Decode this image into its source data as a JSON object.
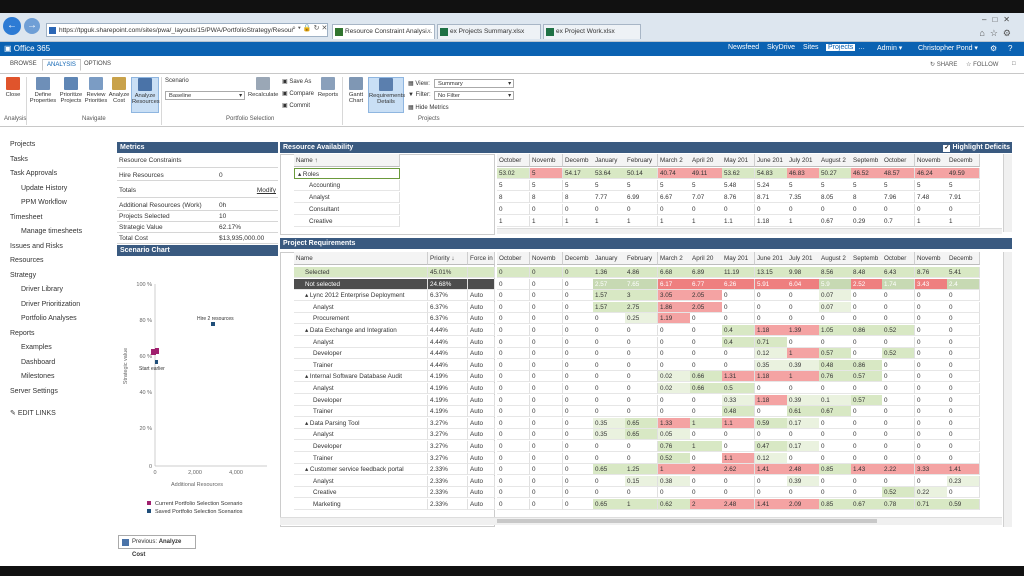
{
  "browser": {
    "url": "https://tpguk.sharepoint.com/sites/pwa/_layouts/15/PWA/PortfolioStrategy/Resour",
    "tabs": [
      {
        "label": "Resource Constraint Analysi...",
        "active": true,
        "icon": "project-icon"
      },
      {
        "label": "ex Projects Summary.xlsx",
        "active": false,
        "icon": "excel-icon"
      },
      {
        "label": "ex Project Work.xlsx",
        "active": false,
        "icon": "excel-icon"
      }
    ]
  },
  "suite": {
    "logo": "Office 365",
    "nav": [
      "Newsfeed",
      "SkyDrive",
      "Sites",
      "Projects",
      "…",
      "Admin ▾"
    ],
    "user": "Christopher Pond ▾"
  },
  "ribbon_tabs": [
    "BROWSE",
    "ANALYSIS",
    "OPTIONS"
  ],
  "share": {
    "share": "SHARE",
    "follow": "FOLLOW"
  },
  "ribbon": {
    "close": "Close",
    "define_properties": "Define Properties",
    "prioritize_projects": "Prioritize Projects",
    "review_priorities": "Review Priorities",
    "analyze_cost": "Analyze Cost",
    "analyze_resources": "Analyze Resources",
    "scenario_label": "Scenario",
    "scenario_value": "Baseline",
    "recalculate": "Recalculate",
    "save_as": "Save As",
    "compare": "Compare",
    "commit": "Commit",
    "reports": "Reports",
    "gantt_chart": "Gantt Chart",
    "requirements_details": "Requirements Details",
    "view_label": "View:",
    "view_value": "Summary",
    "filter_label": "Filter:",
    "filter_value": "No Filter",
    "hide_metrics": "Hide Metrics",
    "groups": {
      "analysis": "Analysis",
      "navigate": "Navigate",
      "portfolio_selection": "Portfolio Selection",
      "projects": "Projects"
    }
  },
  "left_nav": [
    "Projects",
    "Tasks",
    "Task Approvals",
    "Update History",
    "PPM Workflow",
    "Timesheet",
    "Manage timesheets",
    "Issues and Risks",
    "Resources",
    "Strategy",
    "Driver Library",
    "Driver Prioritization",
    "Portfolio Analyses",
    "Reports",
    "Examples",
    "Dashboard",
    "Milestones",
    "Server Settings",
    "EDIT LINKS"
  ],
  "metrics": {
    "title": "Metrics",
    "resource_constraints": "Resource Constraints",
    "hire_resources_label": "Hire Resources",
    "hire_resources_value": "0",
    "totals": "Totals",
    "modify": "Modify",
    "rows": [
      {
        "k": "Additional Resources (Work)",
        "v": "0h"
      },
      {
        "k": "Projects Selected",
        "v": "10"
      },
      {
        "k": "Strategic Value",
        "v": "62.17%"
      },
      {
        "k": "Total Cost",
        "v": "$13,935,000.00"
      }
    ]
  },
  "scenario_chart": {
    "title": "Scenario Chart",
    "y_ticks": [
      "100 %",
      "80 %",
      "60 %",
      "40 %",
      "20 %",
      "0"
    ],
    "x_ticks": [
      "0",
      "2,000",
      "4,000"
    ],
    "ylabel": "Strategic value",
    "xlabel": "Additional Resources",
    "annotation_hire": "Hire 2 resources",
    "annotation_start": "Start earlier",
    "legend": [
      {
        "label": "Current Portfolio Selection Scenario",
        "color": "#a0206e"
      },
      {
        "label": "Saved Portfolio Selection Scenarios",
        "color": "#1f4e79"
      }
    ]
  },
  "previous_button": {
    "prefix": "Previous: ",
    "bold": "Analyze Cost"
  },
  "months": [
    "October",
    "Novemb",
    "Decemb",
    "January",
    "February",
    "March 2",
    "April 20",
    "May 201",
    "June 201",
    "July 201",
    "August 2",
    "Septemb",
    "October",
    "Novemb",
    "Decemb"
  ],
  "resource_availability": {
    "title": "Resource Availability",
    "highlight": "Highlight Deficits",
    "name_header": "Name ↑",
    "rows": [
      {
        "name": "▴ Roles",
        "indent": 0,
        "values": [
          "53.02",
          "5",
          "54.17",
          "53.64",
          "50.14",
          "40.74",
          "49.11",
          "53.62",
          "54.83",
          "46.83",
          "50.27",
          "46.52",
          "48.57",
          "46.24",
          "49.59"
        ]
      },
      {
        "name": "Accounting",
        "indent": 1,
        "values": [
          "5",
          "5",
          "5",
          "5",
          "5",
          "5",
          "5",
          "5.48",
          "5.24",
          "5",
          "5",
          "5",
          "5",
          "5",
          "5"
        ]
      },
      {
        "name": "Analyst",
        "indent": 1,
        "values": [
          "8",
          "8",
          "8",
          "7.77",
          "6.99",
          "6.67",
          "7.07",
          "8.76",
          "8.71",
          "7.35",
          "8.05",
          "8",
          "7.96",
          "7.48",
          "7.91"
        ]
      },
      {
        "name": "Consultant",
        "indent": 1,
        "values": [
          "0",
          "0",
          "0",
          "0",
          "0",
          "0",
          "0",
          "0",
          "0",
          "0",
          "0",
          "0",
          "0",
          "0",
          "0"
        ]
      },
      {
        "name": "Creative",
        "indent": 1,
        "values": [
          "1",
          "1",
          "1",
          "1",
          "1",
          "1",
          "1",
          "1.1",
          "1.18",
          "1",
          "0.67",
          "0.29",
          "0.7",
          "1",
          "1"
        ]
      }
    ]
  },
  "project_requirements": {
    "title": "Project Requirements",
    "headers": {
      "name": "Name",
      "priority": "Priority ↓",
      "force": "Force in"
    },
    "rows": [
      {
        "name": "Selected",
        "priority": "45.01%",
        "force": "",
        "indent": 1,
        "style": "selected",
        "values": [
          "0",
          "0",
          "0",
          "1.36",
          "4.86",
          "6.68",
          "6.89",
          "11.19",
          "13.15",
          "9.98",
          "8.56",
          "8.48",
          "6.43",
          "8.76",
          "5.41"
        ]
      },
      {
        "name": "Not selected",
        "priority": "24.68%",
        "force": "",
        "indent": 1,
        "style": "notsel",
        "values": [
          "0",
          "0",
          "0",
          "2.57",
          "7.65",
          "6.17",
          "6.77",
          "6.26",
          "5.91",
          "6.04",
          "5.9",
          "2.52",
          "1.74",
          "3.43",
          "2.4"
        ]
      },
      {
        "name": "▴ Lync 2012 Enterprise Deployment",
        "priority": "6.37%",
        "force": "Auto",
        "indent": 1,
        "values": [
          "0",
          "0",
          "0",
          "1.57",
          "3",
          "3.05",
          "2.05",
          "0",
          "0",
          "0",
          "0.07",
          "0",
          "0",
          "0",
          "0"
        ]
      },
      {
        "name": "Analyst",
        "priority": "6.37%",
        "force": "Auto",
        "indent": 2,
        "values": [
          "0",
          "0",
          "0",
          "1.57",
          "2.75",
          "1.86",
          "2.05",
          "0",
          "0",
          "0",
          "0.07",
          "0",
          "0",
          "0",
          "0"
        ]
      },
      {
        "name": "Procurement",
        "priority": "6.37%",
        "force": "Auto",
        "indent": 2,
        "values": [
          "0",
          "0",
          "0",
          "0",
          "0.25",
          "1.19",
          "0",
          "0",
          "0",
          "0",
          "0",
          "0",
          "0",
          "0",
          "0"
        ]
      },
      {
        "name": "▴ Data Exchange and Integration",
        "priority": "4.44%",
        "force": "Auto",
        "indent": 1,
        "values": [
          "0",
          "0",
          "0",
          "0",
          "0",
          "0",
          "0",
          "0.4",
          "1.18",
          "1.39",
          "1.05",
          "0.86",
          "0.52",
          "0",
          "0"
        ]
      },
      {
        "name": "Analyst",
        "priority": "4.44%",
        "force": "Auto",
        "indent": 2,
        "values": [
          "0",
          "0",
          "0",
          "0",
          "0",
          "0",
          "0",
          "0.4",
          "0.71",
          "0",
          "0",
          "0",
          "0",
          "0",
          "0"
        ]
      },
      {
        "name": "Developer",
        "priority": "4.44%",
        "force": "Auto",
        "indent": 2,
        "values": [
          "0",
          "0",
          "0",
          "0",
          "0",
          "0",
          "0",
          "0",
          "0.12",
          "1",
          "0.57",
          "0",
          "0.52",
          "0",
          "0"
        ]
      },
      {
        "name": "Trainer",
        "priority": "4.44%",
        "force": "Auto",
        "indent": 2,
        "values": [
          "0",
          "0",
          "0",
          "0",
          "0",
          "0",
          "0",
          "0",
          "0.35",
          "0.39",
          "0.48",
          "0.86",
          "0",
          "0",
          "0"
        ]
      },
      {
        "name": "▴ Internal Software Database Audit",
        "priority": "4.19%",
        "force": "Auto",
        "indent": 1,
        "values": [
          "0",
          "0",
          "0",
          "0",
          "0",
          "0.02",
          "0.66",
          "1.31",
          "1.18",
          "1",
          "0.76",
          "0.57",
          "0",
          "0",
          "0"
        ]
      },
      {
        "name": "Analyst",
        "priority": "4.19%",
        "force": "Auto",
        "indent": 2,
        "values": [
          "0",
          "0",
          "0",
          "0",
          "0",
          "0.02",
          "0.66",
          "0.5",
          "0",
          "0",
          "0",
          "0",
          "0",
          "0",
          "0"
        ]
      },
      {
        "name": "Developer",
        "priority": "4.19%",
        "force": "Auto",
        "indent": 2,
        "values": [
          "0",
          "0",
          "0",
          "0",
          "0",
          "0",
          "0",
          "0.33",
          "1.18",
          "0.39",
          "0.1",
          "0.57",
          "0",
          "0",
          "0"
        ]
      },
      {
        "name": "Trainer",
        "priority": "4.19%",
        "force": "Auto",
        "indent": 2,
        "values": [
          "0",
          "0",
          "0",
          "0",
          "0",
          "0",
          "0",
          "0.48",
          "0",
          "0.61",
          "0.67",
          "0",
          "0",
          "0",
          "0"
        ]
      },
      {
        "name": "▴ Data Parsing Tool",
        "priority": "3.27%",
        "force": "Auto",
        "indent": 1,
        "values": [
          "0",
          "0",
          "0",
          "0.35",
          "0.65",
          "1.33",
          "1",
          "1.1",
          "0.59",
          "0.17",
          "0",
          "0",
          "0",
          "0",
          "0"
        ]
      },
      {
        "name": "Analyst",
        "priority": "3.27%",
        "force": "Auto",
        "indent": 2,
        "values": [
          "0",
          "0",
          "0",
          "0.35",
          "0.65",
          "0.05",
          "0",
          "0",
          "0",
          "0",
          "0",
          "0",
          "0",
          "0",
          "0"
        ]
      },
      {
        "name": "Developer",
        "priority": "3.27%",
        "force": "Auto",
        "indent": 2,
        "values": [
          "0",
          "0",
          "0",
          "0",
          "0",
          "0.76",
          "1",
          "0",
          "0.47",
          "0.17",
          "0",
          "0",
          "0",
          "0",
          "0"
        ]
      },
      {
        "name": "Trainer",
        "priority": "3.27%",
        "force": "Auto",
        "indent": 2,
        "values": [
          "0",
          "0",
          "0",
          "0",
          "0",
          "0.52",
          "0",
          "1.1",
          "0.12",
          "0",
          "0",
          "0",
          "0",
          "0",
          "0"
        ]
      },
      {
        "name": "▴ Customer service feedback portal",
        "priority": "2.33%",
        "force": "Auto",
        "indent": 1,
        "values": [
          "0",
          "0",
          "0",
          "0.65",
          "1.25",
          "1",
          "2",
          "2.62",
          "1.41",
          "2.48",
          "0.85",
          "1.43",
          "2.22",
          "3.33",
          "1.41"
        ]
      },
      {
        "name": "Analyst",
        "priority": "2.33%",
        "force": "Auto",
        "indent": 2,
        "values": [
          "0",
          "0",
          "0",
          "0",
          "0.15",
          "0.38",
          "0",
          "0",
          "0",
          "0.39",
          "0",
          "0",
          "0",
          "0",
          "0.23"
        ]
      },
      {
        "name": "Creative",
        "priority": "2.33%",
        "force": "Auto",
        "indent": 2,
        "values": [
          "0",
          "0",
          "0",
          "0",
          "0",
          "0",
          "0",
          "0",
          "0",
          "0",
          "0",
          "0",
          "0.52",
          "0.22",
          "0"
        ]
      },
      {
        "name": "Marketing",
        "priority": "2.33%",
        "force": "Auto",
        "indent": 2,
        "values": [
          "0",
          "0",
          "0",
          "0.65",
          "1",
          "0.62",
          "2",
          "2.48",
          "1.41",
          "2.09",
          "0.85",
          "0.67",
          "0.78",
          "0.71",
          "0.59"
        ]
      }
    ]
  }
}
